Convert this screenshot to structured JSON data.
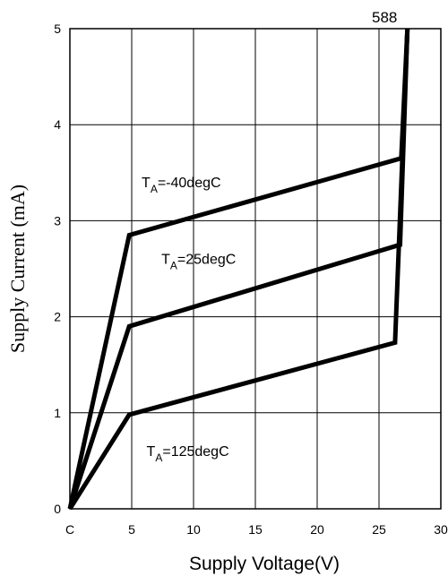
{
  "chart_data": {
    "type": "line",
    "title": "",
    "xlabel": "Supply Voltage(V)",
    "ylabel": "Supply Current  (mA)",
    "xlim": [
      0,
      30
    ],
    "ylim": [
      0,
      5
    ],
    "x_ticks": [
      {
        "value": 0,
        "label": "C"
      },
      {
        "value": 5,
        "label": "5"
      },
      {
        "value": 10,
        "label": "10"
      },
      {
        "value": 15,
        "label": "15"
      },
      {
        "value": 20,
        "label": "20"
      },
      {
        "value": 25,
        "label": "25"
      },
      {
        "value": 30,
        "label": "30"
      }
    ],
    "y_ticks": [
      {
        "value": 0,
        "label": "0"
      },
      {
        "value": 1,
        "label": "1"
      },
      {
        "value": 2,
        "label": "2"
      },
      {
        "value": 3,
        "label": "3"
      },
      {
        "value": 4,
        "label": "4"
      },
      {
        "value": 5,
        "label": "5"
      }
    ],
    "grid": true,
    "annotation": "588",
    "series": [
      {
        "label_main": "T",
        "label_sub": "A",
        "label_rest": "=-40degC",
        "label_pos": [
          5.8,
          3.35
        ],
        "points": [
          [
            0,
            0
          ],
          [
            4.8,
            2.85
          ],
          [
            26.8,
            3.65
          ],
          [
            27.3,
            5.0
          ]
        ]
      },
      {
        "label_main": "T",
        "label_sub": "A",
        "label_rest": "=25degC",
        "label_pos": [
          7.4,
          2.55
        ],
        "points": [
          [
            0,
            0
          ],
          [
            4.8,
            1.9
          ],
          [
            26.7,
            2.75
          ],
          [
            27.3,
            5.0
          ]
        ]
      },
      {
        "label_main": "T",
        "label_sub": "A",
        "label_rest": "=125degC",
        "label_pos": [
          6.2,
          0.55
        ],
        "points": [
          [
            0,
            0
          ],
          [
            4.8,
            0.98
          ],
          [
            26.3,
            1.73
          ],
          [
            27.3,
            5.0
          ]
        ]
      }
    ]
  }
}
